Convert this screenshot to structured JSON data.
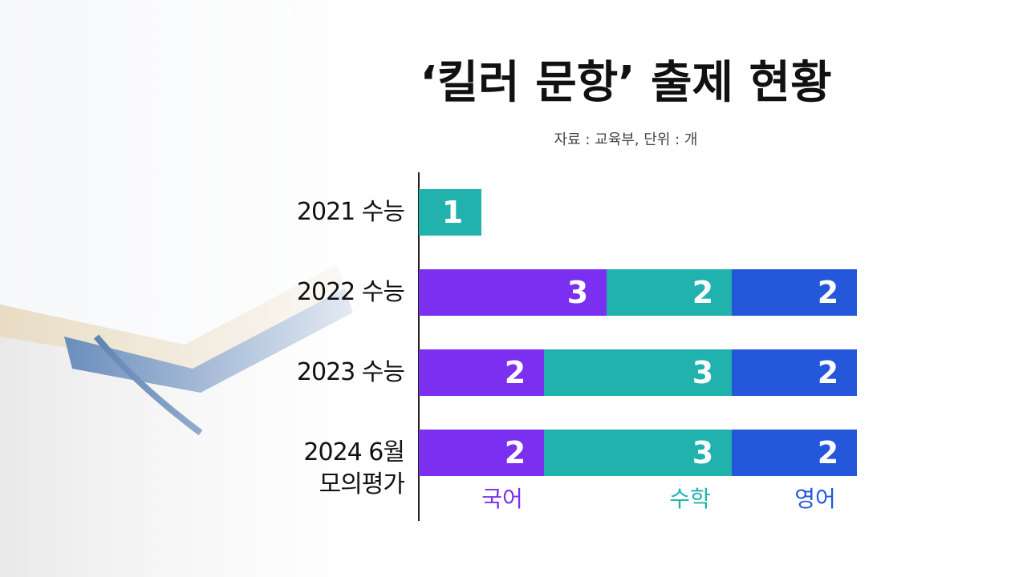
{
  "chart_data": {
    "type": "stacked-bar-horizontal",
    "title": "‘킬러 문항’ 출제 현황",
    "subtitle": "자료 : 교육부, 단위 : 개",
    "categories": [
      "2021 수능",
      "2022 수능",
      "2023 수능",
      "2024 6월\n모의평가"
    ],
    "series": [
      {
        "name": "국어",
        "color": "#7b2ff0",
        "values": [
          null,
          3,
          2,
          2
        ]
      },
      {
        "name": "수학",
        "color": "#21b2ae",
        "values": [
          1,
          2,
          3,
          3
        ]
      },
      {
        "name": "영어",
        "color": "#2457d9",
        "values": [
          null,
          2,
          2,
          2
        ]
      }
    ]
  }
}
